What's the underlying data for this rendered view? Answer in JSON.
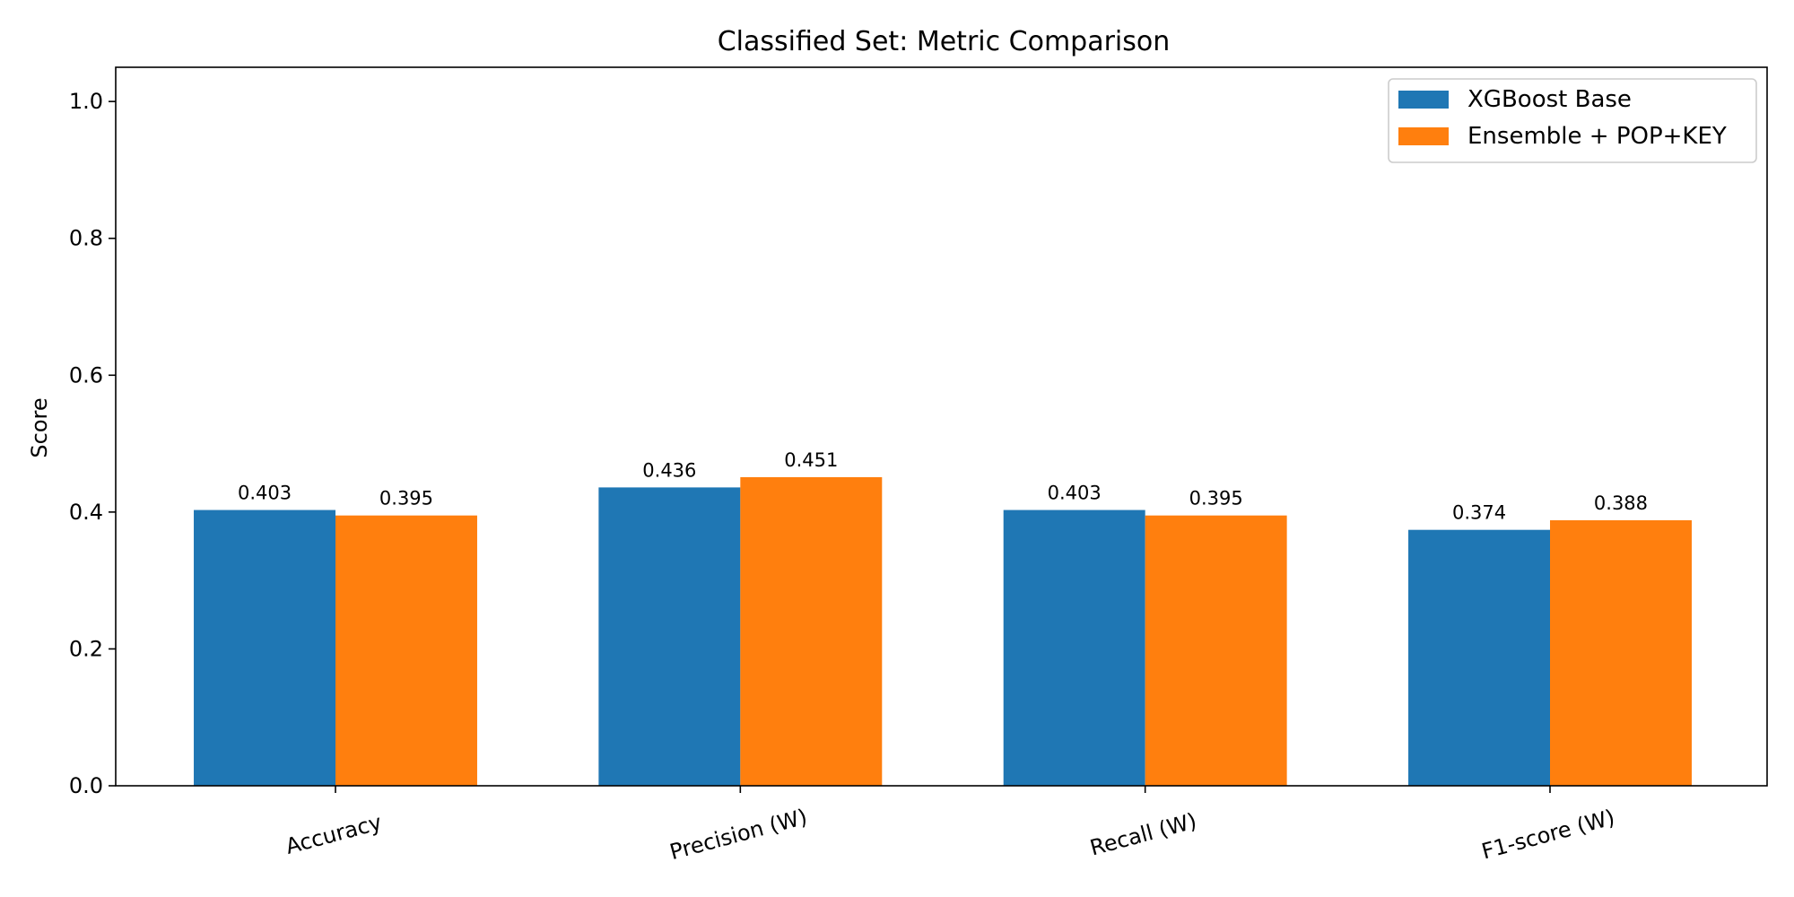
{
  "chart_data": {
    "type": "bar",
    "title": "Classified Set: Metric Comparison",
    "xlabel": "",
    "ylabel": "Score",
    "categories": [
      "Accuracy",
      "Precision (W)",
      "Recall (W)",
      "F1-score (W)"
    ],
    "series": [
      {
        "name": "XGBoost Base",
        "values": [
          0.403,
          0.436,
          0.403,
          0.374
        ],
        "color": "#1f77b4"
      },
      {
        "name": "Ensemble + POP+KEY",
        "values": [
          0.395,
          0.451,
          0.395,
          0.388
        ],
        "color": "#ff7f0e"
      }
    ],
    "ylim": [
      0,
      1.05
    ],
    "yticks": [
      0.0,
      0.2,
      0.4,
      0.6,
      0.8,
      1.0
    ],
    "ytick_labels": [
      "0.0",
      "0.2",
      "0.4",
      "0.6",
      "0.8",
      "1.0"
    ],
    "data_labels": [
      [
        "0.403",
        "0.436",
        "0.403",
        "0.374"
      ],
      [
        "0.395",
        "0.451",
        "0.395",
        "0.388"
      ]
    ],
    "grid": false,
    "legend_position": "top-right",
    "xtick_rotation_deg": -15
  }
}
